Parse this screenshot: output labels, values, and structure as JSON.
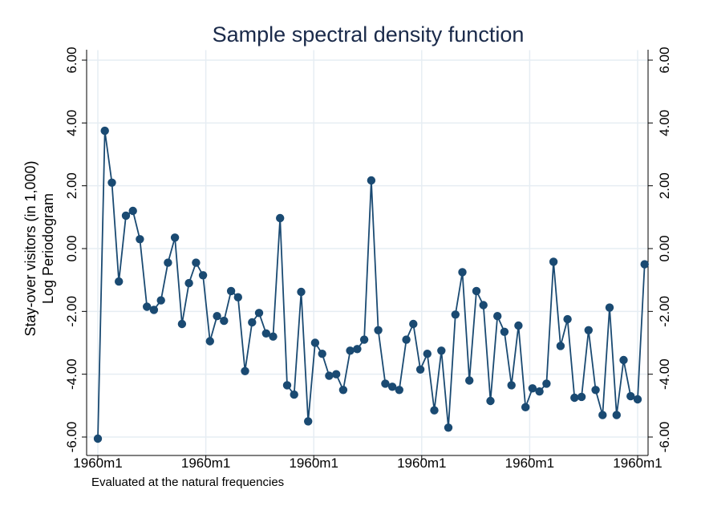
{
  "chart_data": {
    "type": "line",
    "title": "Sample spectral density function",
    "ylabel_line1": "Stay-over visitors (in 1,000)",
    "ylabel_line2": "Log Periodogram",
    "note": "Evaluated at the natural frequencies",
    "ylim": [
      -6.0,
      6.0
    ],
    "yticks": [
      "6.00",
      "4.00",
      "2.00",
      "0.00",
      "-2.00",
      "-4.00",
      "-6.00"
    ],
    "ytick_values": [
      6,
      4,
      2,
      0,
      -2,
      -4,
      -6
    ],
    "xlim": [
      1,
      78
    ],
    "xtick_labels": [
      "1960m1",
      "1960m1",
      "1960m1",
      "1960m1",
      "1960m1",
      "1960m1"
    ],
    "xtick_positions": [
      1,
      16.4,
      31.8,
      47.2,
      62.6,
      78
    ],
    "grid": true,
    "colors": {
      "series": "#1a4a72",
      "grid": "#e6edf3",
      "title": "#1a2a4a"
    },
    "series": [
      {
        "values": [
          -6.05,
          3.75,
          2.1,
          -1.05,
          1.05,
          1.2,
          0.3,
          -1.85,
          -1.95,
          -1.65,
          -0.45,
          0.35,
          -2.4,
          -1.1,
          -0.45,
          -0.85,
          -2.95,
          -2.15,
          -2.3,
          -1.35,
          -1.55,
          -3.9,
          -2.35,
          -2.05,
          -2.7,
          -2.8,
          0.97,
          -4.35,
          -4.65,
          -1.38,
          -5.5,
          -3.0,
          -3.35,
          -4.05,
          -4.0,
          -4.5,
          -3.25,
          -3.2,
          -2.9,
          2.17,
          -2.6,
          -4.3,
          -4.4,
          -4.5,
          -2.9,
          -2.4,
          -3.85,
          -3.35,
          -5.15,
          -3.25,
          -5.7,
          -2.1,
          -0.75,
          -4.2,
          -1.35,
          -1.8,
          -4.85,
          -2.15,
          -2.65,
          -4.35,
          -2.45,
          -5.05,
          -4.45,
          -4.55,
          -4.3,
          -0.42,
          -3.1,
          -2.25,
          -4.75,
          -4.72,
          -2.6,
          -4.5,
          -5.3,
          -1.88,
          -5.3,
          -3.55,
          -4.7,
          -4.8,
          -0.5
        ]
      }
    ]
  }
}
